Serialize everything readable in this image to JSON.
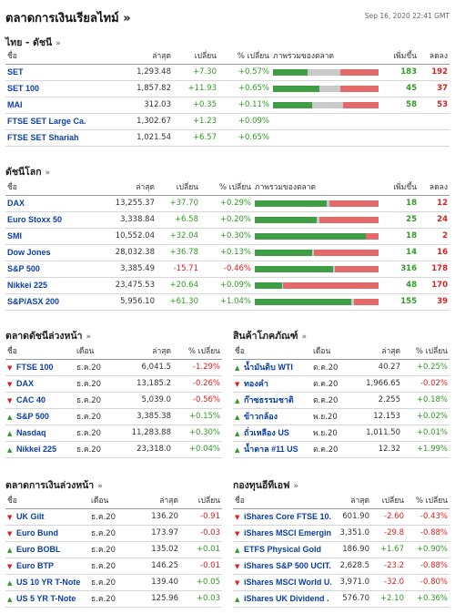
{
  "header": {
    "title": "ตลาดการเงินเรียลไทม์",
    "date": "Sep 16, 2020 22:41 GMT"
  },
  "thai": {
    "title": "ไทย - ดัชนี",
    "headers": [
      "ชื่อ",
      "ล่าสุด",
      "เปลี่ยน",
      "% เปลี่ยน",
      "ภาพรวมของตลาด",
      "เพิ่มขึ้น",
      "ลดลง"
    ],
    "rows": [
      {
        "name": "SET",
        "last": "1,293.48",
        "chg": "+7.30",
        "pct": "+0.57%",
        "up": "183",
        "down": "192",
        "bar": [
          0.33,
          0.31,
          0.36
        ]
      },
      {
        "name": "SET 100",
        "last": "1,857.82",
        "chg": "+11.93",
        "pct": "+0.65%",
        "up": "45",
        "down": "37",
        "bar": [
          0.44,
          0.2,
          0.36
        ]
      },
      {
        "name": "MAI",
        "last": "312.03",
        "chg": "+0.35",
        "pct": "+0.11%",
        "up": "58",
        "down": "53",
        "bar": [
          0.37,
          0.29,
          0.34
        ]
      },
      {
        "name": "FTSE SET Large Ca.",
        "last": "1,302.67",
        "chg": "+1.23",
        "pct": "+0.09%"
      },
      {
        "name": "FTSE SET Shariah",
        "last": "1,021.54",
        "chg": "+6.57",
        "pct": "+0.65%"
      }
    ]
  },
  "world": {
    "title": "ดัชนีโลก",
    "headers": [
      "ชื่อ",
      "ล่าสุด",
      "เปลี่ยน",
      "% เปลี่ยน",
      "ภาพรวมของตลาด",
      "เพิ่มขึ้น",
      "ลดลง"
    ],
    "rows": [
      {
        "name": "DAX",
        "last": "13,255.37",
        "chg": "+37.70",
        "pct": "+0.29%",
        "up": "18",
        "down": "12",
        "bar": [
          0.58,
          0.02,
          0.4
        ]
      },
      {
        "name": "Euro Stoxx 50",
        "last": "3,338.84",
        "chg": "+6.58",
        "pct": "+0.20%",
        "up": "25",
        "down": "24",
        "bar": [
          0.5,
          0.02,
          0.48
        ]
      },
      {
        "name": "SMI",
        "last": "10,552.04",
        "chg": "+32.04",
        "pct": "+0.30%",
        "up": "18",
        "down": "2",
        "bar": [
          0.9,
          0.0,
          0.1
        ]
      },
      {
        "name": "Dow Jones",
        "last": "28,032.38",
        "chg": "+36.78",
        "pct": "+0.13%",
        "up": "14",
        "down": "16",
        "bar": [
          0.46,
          0.02,
          0.52
        ]
      },
      {
        "name": "S&P 500",
        "last": "3,385.49",
        "chg": "-15.71",
        "pct": "-0.46%",
        "up": "316",
        "down": "178",
        "bar": [
          0.63,
          0.02,
          0.35
        ]
      },
      {
        "name": "Nikkei 225",
        "last": "23,475.53",
        "chg": "+20.64",
        "pct": "+0.09%",
        "up": "48",
        "down": "170",
        "bar": [
          0.22,
          0.01,
          0.77
        ]
      },
      {
        "name": "S&P/ASX 200",
        "last": "5,956.10",
        "chg": "+61.30",
        "pct": "+1.04%",
        "up": "155",
        "down": "39",
        "bar": [
          0.78,
          0.02,
          0.2
        ]
      }
    ]
  },
  "futures": {
    "title": "ตลาดดัชนีล่วงหน้า",
    "headers": [
      "ชื่อ",
      "เดือน",
      "ล่าสุด",
      "% เปลี่ยน"
    ],
    "rows": [
      {
        "name": "FTSE 100",
        "month": "ธ.ค.20",
        "last": "6,041.5",
        "pct": "-1.29%",
        "dir": "down"
      },
      {
        "name": "DAX",
        "month": "ธ.ค.20",
        "last": "13,185.2",
        "pct": "-0.26%",
        "dir": "down"
      },
      {
        "name": "CAC 40",
        "month": "ธ.ค.20",
        "last": "5,039.0",
        "pct": "-0.56%",
        "dir": "down"
      },
      {
        "name": "S&P 500",
        "month": "ธ.ค.20",
        "last": "3,385.38",
        "pct": "+0.15%",
        "dir": "up"
      },
      {
        "name": "Nasdaq",
        "month": "ธ.ค.20",
        "last": "11,283.88",
        "pct": "+0.30%",
        "dir": "up"
      },
      {
        "name": "Nikkei 225",
        "month": "ธ.ค.20",
        "last": "23,318.0",
        "pct": "+0.04%",
        "dir": "up"
      }
    ]
  },
  "commodities": {
    "title": "สินค้าโภคภัณฑ์",
    "headers": [
      "ชื่อ",
      "เดือน",
      "ล่าสุด",
      "% เปลี่ยน"
    ],
    "rows": [
      {
        "name": "น้ำมันดิบ WTI",
        "month": "ต.ค.20",
        "last": "40.27",
        "pct": "+0.25%",
        "dir": "up"
      },
      {
        "name": "ทองคำ",
        "month": "ต.ค.20",
        "last": "1,966.65",
        "pct": "-0.02%",
        "dir": "down"
      },
      {
        "name": "ก๊าซธรรมชาติ",
        "month": "ต.ค.20",
        "last": "2.255",
        "pct": "+0.18%",
        "dir": "up"
      },
      {
        "name": "ข้าวกล้อง",
        "month": "พ.ย.20",
        "last": "12.153",
        "pct": "+0.02%",
        "dir": "up"
      },
      {
        "name": "ถั่วเหลือง US",
        "month": "พ.ย.20",
        "last": "1,011.50",
        "pct": "+0.01%",
        "dir": "up"
      },
      {
        "name": "น้ำตาล #11 US",
        "month": "ต.ค.20",
        "last": "12.32",
        "pct": "+1.99%",
        "dir": "up"
      }
    ]
  },
  "fin_futures": {
    "title": "ตลาดการเงินล่วงหน้า",
    "headers": [
      "ชื่อ",
      "เดือน",
      "ล่าสุด",
      "เปลี่ยน"
    ],
    "rows": [
      {
        "name": "UK Gilt",
        "month": "ธ.ค.20",
        "last": "136.20",
        "chg": "-0.91",
        "dir": "down"
      },
      {
        "name": "Euro Bund",
        "month": "ธ.ค.20",
        "last": "173.97",
        "chg": "-0.03",
        "dir": "down"
      },
      {
        "name": "Euro BOBL",
        "month": "ธ.ค.20",
        "last": "135.02",
        "chg": "+0.01",
        "dir": "up"
      },
      {
        "name": "Euro BTP",
        "month": "ธ.ค.20",
        "last": "146.25",
        "chg": "-0.01",
        "dir": "down"
      },
      {
        "name": "US 10 YR T-Note",
        "month": "ธ.ค.20",
        "last": "139.40",
        "chg": "+0.05",
        "dir": "up"
      },
      {
        "name": "US 5 YR T-Note",
        "month": "ธ.ค.20",
        "last": "125.96",
        "chg": "+0.03",
        "dir": "up"
      }
    ]
  },
  "etf": {
    "title": "กองทุนอีทีเอฟ",
    "headers": [
      "ชื่อ",
      "ล่าสุด",
      "เปลี่ยน",
      "% เปลี่ยน"
    ],
    "rows": [
      {
        "name": "iShares Core FTSE 10.",
        "last": "601.90",
        "chg": "-2.60",
        "pct": "-0.43%",
        "dir": "down"
      },
      {
        "name": "iShares MSCI Emergin.",
        "last": "3,351.0",
        "chg": "-29.8",
        "pct": "-0.88%",
        "dir": "down"
      },
      {
        "name": "ETFS Physical Gold",
        "last": "186.90",
        "chg": "+1.67",
        "pct": "+0.90%",
        "dir": "up"
      },
      {
        "name": "iShares S&P 500 UCIT.",
        "last": "2,628.5",
        "chg": "-23.2",
        "pct": "-0.88%",
        "dir": "down"
      },
      {
        "name": "iShares MSCI World U.",
        "last": "3,971.0",
        "chg": "-32.0",
        "pct": "-0.80%",
        "dir": "down"
      },
      {
        "name": "iShares UK Dividend .",
        "last": "576.70",
        "chg": "+2.10",
        "pct": "+0.36%",
        "dir": "up"
      }
    ]
  },
  "colors": {
    "positive": "#2e9b22",
    "negative": "#e21b1b",
    "name": "#0b3fa8",
    "bar_green": "#3f9e45",
    "bar_gray": "#c9c9c9",
    "bar_red": "#e26a6a"
  }
}
